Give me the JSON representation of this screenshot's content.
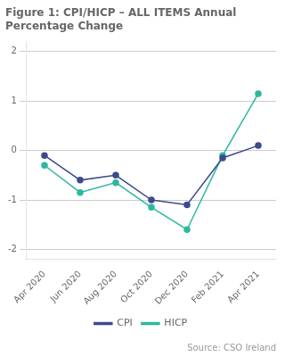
{
  "chart_data": {
    "type": "line",
    "title": "Figure 1: CPI/HICP – ALL ITEMS Annual\nPercentage Change",
    "annotations": [
      "Source: CSO Ireland"
    ],
    "categories": [
      "Apr 2020",
      "Jun 2020",
      "Aug 2020",
      "Oct 2020",
      "Dec 2020",
      "Feb 2021",
      "Apr 2021"
    ],
    "series": [
      {
        "name": "CPI",
        "color": "#3d4b8c",
        "values": [
          -0.1,
          -0.6,
          -0.5,
          -1.0,
          -1.1,
          -0.15,
          0.1
        ]
      },
      {
        "name": "HICP",
        "color": "#2db8a0",
        "values": [
          -0.3,
          -0.85,
          -0.65,
          -1.15,
          -1.6,
          -0.1,
          1.15
        ]
      }
    ],
    "ylim": [
      -2.2,
      2.2
    ],
    "yticks": [
      -2,
      -1,
      0,
      1,
      2
    ],
    "grid": "y",
    "legend": "bottom",
    "marker": "circle",
    "line_style": "solid"
  }
}
